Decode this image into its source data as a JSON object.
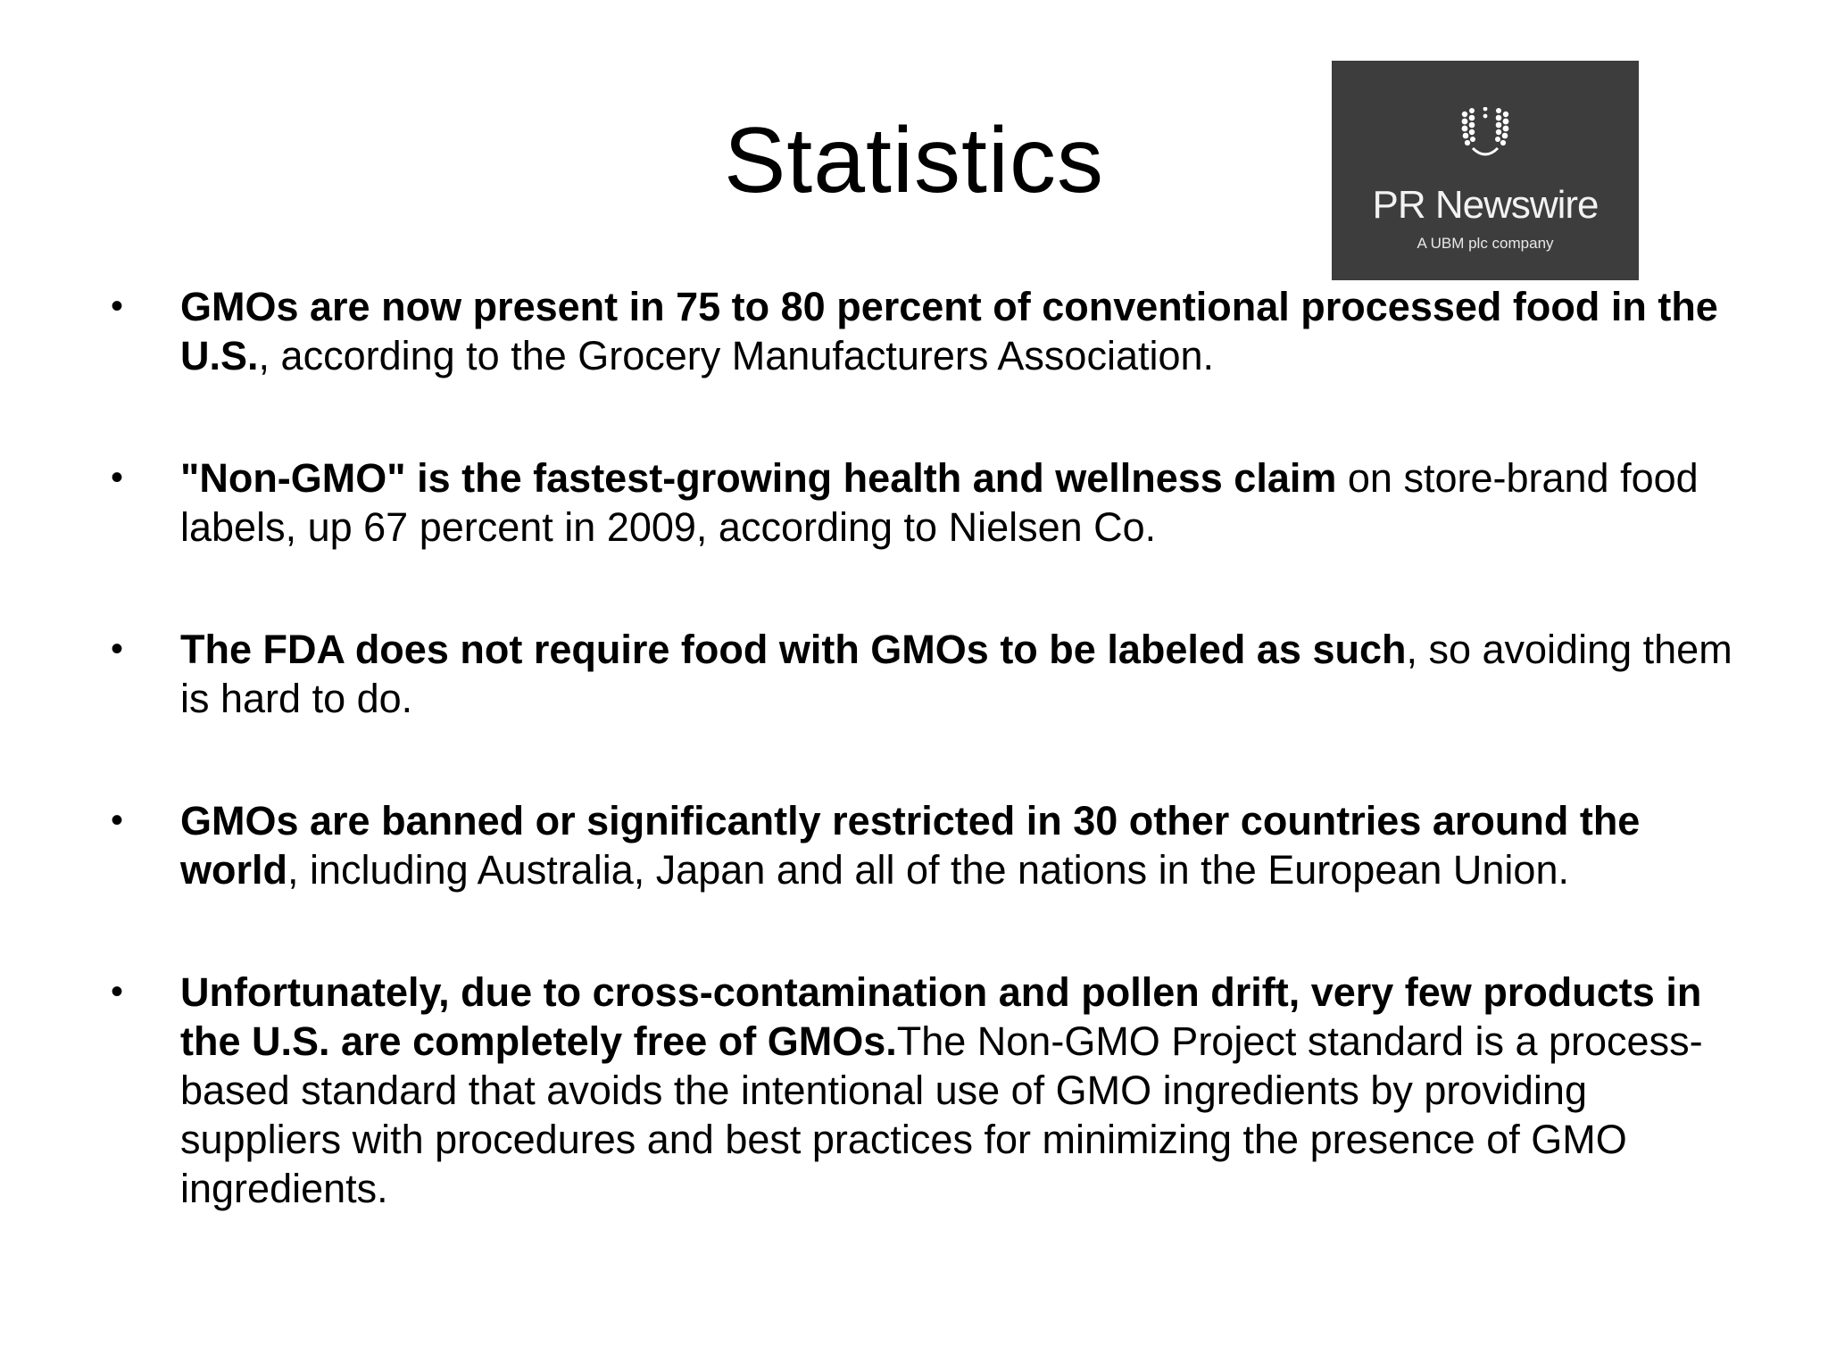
{
  "slide": {
    "title": "Statistics"
  },
  "logo": {
    "name": "PR Newswire",
    "subtitle": "A UBM plc company",
    "background": "#3d3d3d"
  },
  "bullets": [
    {
      "bold": "GMOs are now present in 75 to 80 percent of conventional processed food in the U.S.",
      "rest": ", according to the Grocery Manufacturers Association."
    },
    {
      "bold": "\"Non-GMO\" is the fastest-growing health and wellness claim",
      "rest": " on store-brand food labels, up 67 percent in 2009, according to Nielsen Co."
    },
    {
      "bold": "The FDA does not require food with GMOs to be labeled as such",
      "rest": ", so avoiding them is hard to do."
    },
    {
      "bold": "GMOs are banned or significantly restricted in 30 other countries around the world",
      "rest": ", including Australia, Japan and all of the nations in the European Union."
    },
    {
      "bold": "Unfortunately, due to cross-contamination and pollen drift, very few products in the U.S. are completely free of GMOs.",
      "rest": "The Non-GMO Project standard is a process-based standard that avoids the intentional use of GMO ingredients by providing suppliers with procedures and best practices for minimizing the presence of GMO ingredients."
    }
  ],
  "bullet_glyph": "•"
}
